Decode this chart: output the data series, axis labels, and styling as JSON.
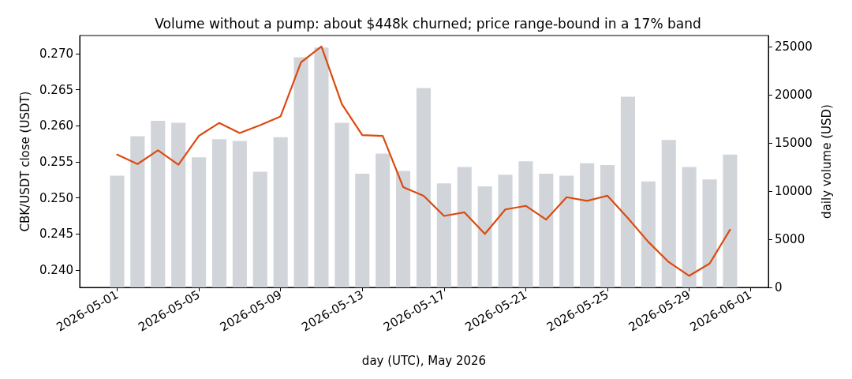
{
  "chart_data": {
    "type": "line",
    "title": "Volume without a pump: about $448k churned; price range-bound in a 17% band",
    "xlabel": "day (UTC), May 2026",
    "ylabel": "CBK/USDT close (USDT)",
    "y2label": "daily volume (USD)",
    "x": [
      "2026-05-01",
      "2026-05-02",
      "2026-05-03",
      "2026-05-04",
      "2026-05-05",
      "2026-05-06",
      "2026-05-07",
      "2026-05-08",
      "2026-05-09",
      "2026-05-10",
      "2026-05-11",
      "2026-05-12",
      "2026-05-13",
      "2026-05-14",
      "2026-05-15",
      "2026-05-16",
      "2026-05-17",
      "2026-05-18",
      "2026-05-19",
      "2026-05-20",
      "2026-05-21",
      "2026-05-22",
      "2026-05-23",
      "2026-05-24",
      "2026-05-25",
      "2026-05-26",
      "2026-05-27",
      "2026-05-28",
      "2026-05-29",
      "2026-05-30",
      "2026-05-31"
    ],
    "series": [
      {
        "type": "bar",
        "axis": "y2",
        "color": "#d1d5da",
        "values": [
          11600,
          15700,
          17300,
          17100,
          13500,
          15400,
          15200,
          12000,
          15600,
          23900,
          24900,
          17100,
          11800,
          13900,
          12100,
          20700,
          10800,
          12500,
          10500,
          11700,
          13100,
          11800,
          11600,
          12900,
          12700,
          19800,
          11000,
          15300,
          12500,
          11200,
          13800
        ]
      },
      {
        "axis": "y",
        "color": "#dc4a10",
        "values": [
          0.256,
          0.2547,
          0.2566,
          0.2546,
          0.2586,
          0.2604,
          0.259,
          0.2601,
          0.2613,
          0.2688,
          0.271,
          0.263,
          0.2587,
          0.2586,
          0.2515,
          0.2503,
          0.2475,
          0.248,
          0.245,
          0.2484,
          0.2489,
          0.247,
          0.2501,
          0.2496,
          0.2503,
          0.2472,
          0.2439,
          0.2411,
          0.2392,
          0.2409,
          0.2456
        ]
      }
    ],
    "xlim": [
      "2026-04-29T04:00",
      "2026-06-01T21:00"
    ],
    "xticks": [
      "2026-05-01",
      "2026-05-05",
      "2026-05-09",
      "2026-05-13",
      "2026-05-17",
      "2026-05-21",
      "2026-05-25",
      "2026-05-29",
      "2026-06-01"
    ],
    "ylim": [
      0.23759,
      0.27252
    ],
    "yticks": [
      {
        "value": 0.24,
        "label": "0.240"
      },
      {
        "value": 0.245,
        "label": "0.245"
      },
      {
        "value": 0.25,
        "label": "0.250"
      },
      {
        "value": 0.255,
        "label": "0.255"
      },
      {
        "value": 0.26,
        "label": "0.260"
      },
      {
        "value": 0.265,
        "label": "0.265"
      },
      {
        "value": 0.27,
        "label": "0.270"
      }
    ],
    "y2lim": [
      0,
      26150
    ],
    "y2ticks": [
      0,
      5000,
      10000,
      15000,
      20000,
      25000
    ],
    "grid": false,
    "marker": "none",
    "line_style": "solid"
  }
}
